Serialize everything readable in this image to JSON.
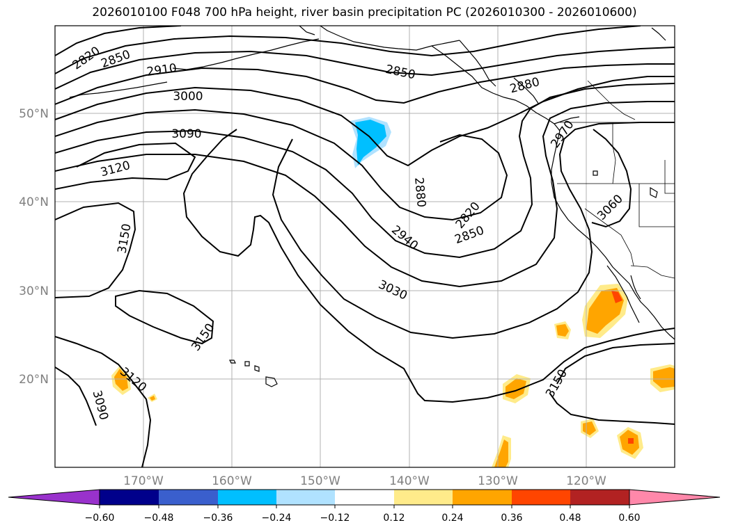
{
  "title": "2026010100 F048 700 hPa height, river basin precipitation PC (2026010300 - 2026010600)",
  "lat_labels": [
    "50°N",
    "40°N",
    "30°N",
    "20°N"
  ],
  "lon_labels": [
    "170°W",
    "160°W",
    "150°W",
    "140°W",
    "130°W",
    "120°W"
  ],
  "contour_labels": [
    "2820",
    "2850",
    "2910",
    "3000",
    "3090",
    "3120",
    "3150",
    "2850",
    "2880",
    "2970",
    "2880",
    "2820",
    "2850",
    "2940",
    "3030",
    "3060",
    "3150",
    "3120",
    "3090",
    "3150"
  ],
  "colorbar": {
    "ticks": [
      "−0.60",
      "−0.48",
      "−0.36",
      "−0.24",
      "−0.12",
      "0.12",
      "0.24",
      "0.36",
      "0.48",
      "0.60"
    ],
    "colors": [
      "#9932cc",
      "#00008b",
      "#3a5fcd",
      "#00bfff",
      "#b0e2ff",
      "#ffffff",
      "#ffeb8a",
      "#ffa500",
      "#ff4500",
      "#b22222",
      "#ff88aa"
    ]
  },
  "colors": {
    "precip_negative": "#00bfff",
    "precip_negative_light": "#b0e2ff",
    "precip_positive_light": "#ffeb8a",
    "precip_positive": "#ffa500",
    "precip_positive_strong": "#ff4500",
    "contour": "#000000",
    "grid": "#b0b0b0"
  }
}
